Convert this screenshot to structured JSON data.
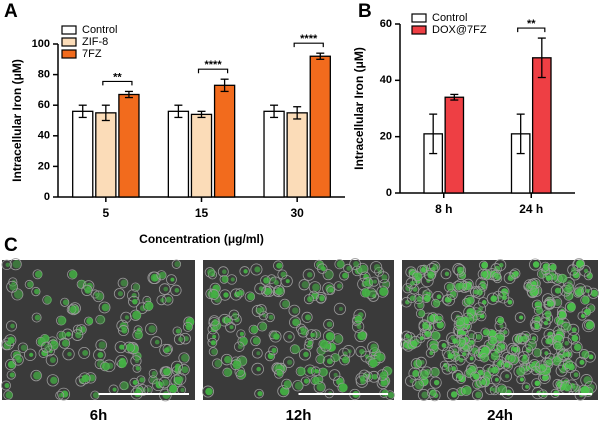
{
  "panel_labels": [
    "A",
    "B",
    "C"
  ],
  "chart_data": [
    {
      "type": "bar",
      "ylabel": "Intracellular Iron (μM)",
      "xlabel": "Concentration (μg/ml)",
      "categories": [
        "5",
        "15",
        "30"
      ],
      "series": [
        {
          "name": "Control",
          "color": "#ffffff",
          "values": [
            56,
            56,
            56
          ],
          "errors": [
            4,
            4,
            4
          ]
        },
        {
          "name": "ZIF-8",
          "color": "#fbdcb8",
          "values": [
            55,
            54,
            55
          ],
          "errors": [
            5,
            2,
            4
          ]
        },
        {
          "name": "7FZ",
          "color": "#f26b1d",
          "values": [
            67,
            73,
            92
          ],
          "errors": [
            2,
            4,
            2
          ]
        }
      ],
      "significance": [
        "**",
        "****",
        "****"
      ],
      "ylim": [
        0,
        100
      ],
      "yticks": [
        0,
        20,
        40,
        60,
        80,
        100
      ]
    },
    {
      "type": "bar",
      "ylabel": "Intracellular Iron (μM)",
      "categories": [
        "8 h",
        "24 h"
      ],
      "series": [
        {
          "name": "Control",
          "color": "#ffffff",
          "values": [
            21,
            21
          ],
          "errors": [
            7,
            7
          ]
        },
        {
          "name": "DOX@7FZ",
          "color": "#ee3f44",
          "values": [
            34,
            48
          ],
          "errors": [
            1,
            7
          ]
        }
      ],
      "significance": [
        null,
        "**"
      ],
      "ylim": [
        0,
        60
      ],
      "yticks": [
        0,
        20,
        40,
        60
      ]
    }
  ],
  "images": {
    "labels": [
      "6h",
      "12h",
      "24h"
    ]
  }
}
